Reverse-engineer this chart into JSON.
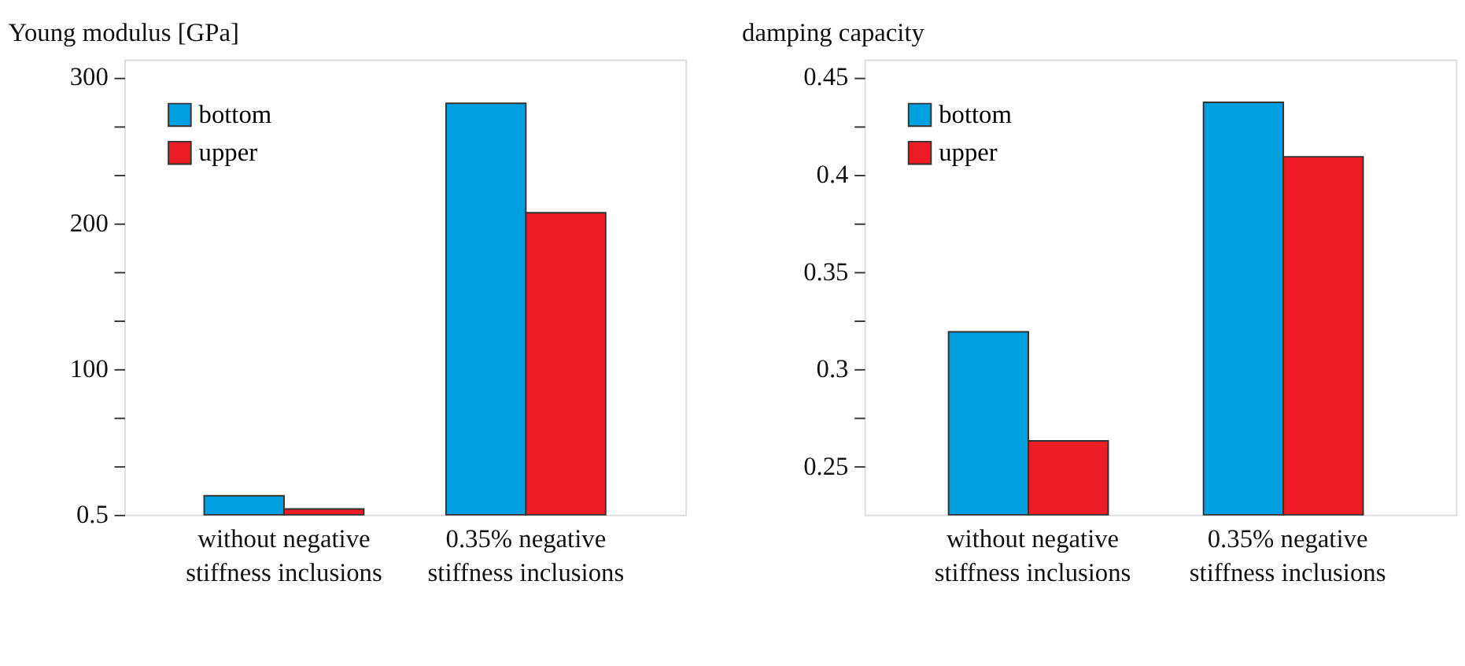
{
  "chart_data": [
    {
      "type": "bar",
      "title": "Young modulus [GPa]",
      "categories": [
        "without negative\nstiffness inclusions",
        "0.35% negative\nstiffness inclusions"
      ],
      "series": [
        {
          "name": "bottom",
          "color": "#00a0e0",
          "values": [
            13,
            282
          ]
        },
        {
          "name": "upper",
          "color": "#ec1c24",
          "values": [
            4,
            207
          ]
        }
      ],
      "ylim": [
        0,
        312
      ],
      "yticks": [
        0.5,
        {
          "value": 33.3,
          "label": null
        },
        {
          "value": 66.7,
          "label": null
        },
        100,
        {
          "value": 133.3,
          "label": null
        },
        {
          "value": 166.7,
          "label": null
        },
        200,
        {
          "value": 233.3,
          "label": null
        },
        {
          "value": 266.7,
          "label": null
        },
        300
      ],
      "legend": "top left",
      "grid": false
    },
    {
      "type": "bar",
      "title": "damping capacity",
      "categories": [
        "without negative\nstiffness inclusions",
        "0.35% negative\nstiffness inclusions"
      ],
      "series": [
        {
          "name": "bottom",
          "color": "#00a0e0",
          "values": [
            0.319,
            0.437
          ]
        },
        {
          "name": "upper",
          "color": "#ec1c24",
          "values": [
            0.263,
            0.409
          ]
        }
      ],
      "ylim": [
        0.225,
        0.459
      ],
      "yticks": [
        0.25,
        {
          "value": 0.275,
          "label": null
        },
        0.3,
        {
          "value": 0.325,
          "label": null
        },
        0.35,
        {
          "value": 0.375,
          "label": null
        },
        0.4,
        {
          "value": 0.425,
          "label": null
        },
        0.45
      ],
      "legend": "top left",
      "grid": false
    }
  ]
}
